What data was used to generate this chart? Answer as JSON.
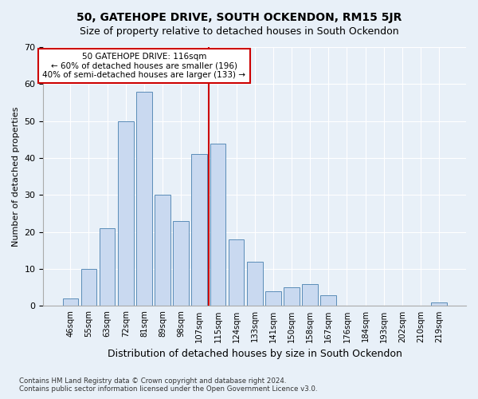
{
  "title": "50, GATEHOPE DRIVE, SOUTH OCKENDON, RM15 5JR",
  "subtitle": "Size of property relative to detached houses in South Ockendon",
  "xlabel": "Distribution of detached houses by size in South Ockendon",
  "ylabel": "Number of detached properties",
  "bar_labels": [
    "46sqm",
    "55sqm",
    "63sqm",
    "72sqm",
    "81sqm",
    "89sqm",
    "98sqm",
    "107sqm",
    "115sqm",
    "124sqm",
    "133sqm",
    "141sqm",
    "150sqm",
    "158sqm",
    "167sqm",
    "176sqm",
    "184sqm",
    "193sqm",
    "202sqm",
    "210sqm",
    "219sqm"
  ],
  "bar_values": [
    2,
    10,
    21,
    50,
    58,
    30,
    23,
    41,
    44,
    18,
    12,
    4,
    5,
    6,
    3,
    0,
    0,
    0,
    0,
    0,
    1
  ],
  "bar_color": "#c9d9f0",
  "bar_edge_color": "#5b8db8",
  "reference_line_x": 7.5,
  "ylim": [
    0,
    70
  ],
  "yticks": [
    0,
    10,
    20,
    30,
    40,
    50,
    60,
    70
  ],
  "annotation_title": "50 GATEHOPE DRIVE: 116sqm",
  "annotation_line1": "← 60% of detached houses are smaller (196)",
  "annotation_line2": "40% of semi-detached houses are larger (133) →",
  "annotation_box_color": "#ffffff",
  "annotation_box_edge": "#cc0000",
  "vline_color": "#cc0000",
  "footer1": "Contains HM Land Registry data © Crown copyright and database right 2024.",
  "footer2": "Contains public sector information licensed under the Open Government Licence v3.0.",
  "background_color": "#e8f0f8",
  "plot_background": "#e8f0f8",
  "title_fontsize": 10,
  "subtitle_fontsize": 9,
  "ylabel_fontsize": 8,
  "xlabel_fontsize": 9
}
